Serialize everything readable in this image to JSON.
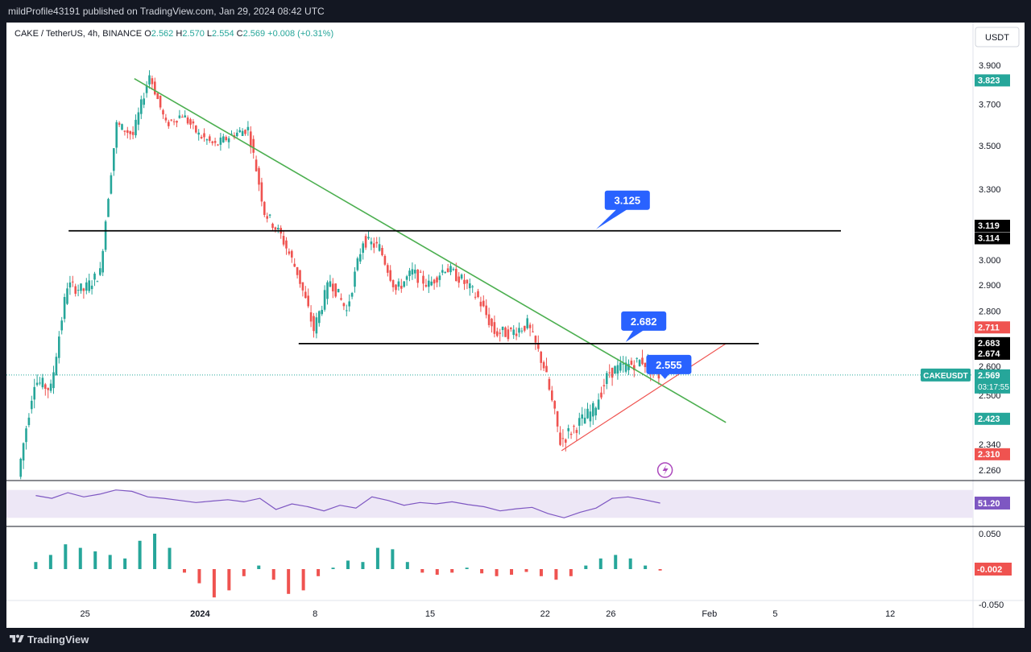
{
  "header": {
    "publisher_line": "mildProfile43191 published on TradingView.com, Jan 29, 2024 08:42 UTC"
  },
  "footer": {
    "brand": "TradingView"
  },
  "legend": {
    "symbol": "CAKE / TetherUS, 4h, BINANCE",
    "o_label": "O",
    "o": "2.562",
    "h_label": "H",
    "h": "2.570",
    "l_label": "L",
    "l": "2.554",
    "c_label": "C",
    "c": "2.569",
    "change": "+0.008 (+0.31%)"
  },
  "currency_button": "USDT",
  "symbol_tag": "CAKEUSDT",
  "countdown": "03:17:55",
  "colors": {
    "up": "#26a69a",
    "down": "#ef5350",
    "trend": "#4caf50",
    "support": "#ef5350",
    "callout": "#2962ff",
    "rsi": "#7e57c2"
  },
  "chart_data": [
    {
      "type": "candlestick",
      "title": "CAKE / TetherUS, 4h, BINANCE",
      "ylim": [
        2.22,
        4.02
      ],
      "y_scale": "log",
      "y_ticks": [
        "3.900",
        "3.700",
        "3.500",
        "3.300",
        "3.000",
        "2.900",
        "2.800",
        "2.600",
        "2.500",
        "2.340",
        "2.260"
      ],
      "x_ticks": [
        "25",
        "2024",
        "8",
        "15",
        "22",
        "26",
        "Feb",
        "5",
        "12"
      ],
      "price_labels": [
        {
          "value": "3.823",
          "color": "#26a69a"
        },
        {
          "value": "3.119",
          "color": "#000000"
        },
        {
          "value": "3.114",
          "color": "#000000"
        },
        {
          "value": "2.711",
          "color": "#ef5350"
        },
        {
          "value": "2.683",
          "color": "#000000"
        },
        {
          "value": "2.674",
          "color": "#000000"
        },
        {
          "value": "2.569",
          "color": "#26a69a"
        },
        {
          "value": "2.423",
          "color": "#26a69a"
        },
        {
          "value": "2.310",
          "color": "#ef5350"
        }
      ],
      "annotations": [
        {
          "label": "3.125",
          "kind": "horizontal line",
          "level": 3.12
        },
        {
          "label": "2.682",
          "kind": "horizontal line",
          "level": 2.68
        },
        {
          "label": "2.555",
          "kind": "trendline touch",
          "level": 2.555
        }
      ],
      "lines": {
        "descending_trendline": {
          "from": [
            "Dec 28",
            3.83
          ],
          "to": [
            "Feb 2",
            2.41
          ]
        },
        "ascending_support": {
          "from": [
            "Jan 23",
            2.32
          ],
          "to": [
            "Feb 2",
            2.68
          ]
        },
        "resistance": 3.12,
        "support": 2.68
      },
      "path_series": [
        {
          "date": "Dec 21",
          "close": 2.24
        },
        {
          "date": "Dec 22",
          "close": 2.55
        },
        {
          "date": "Dec 23",
          "close": 2.52
        },
        {
          "date": "Dec 24",
          "close": 2.9
        },
        {
          "date": "Dec 25",
          "close": 2.88
        },
        {
          "date": "Dec 26",
          "close": 2.95
        },
        {
          "date": "Dec 27",
          "close": 3.6
        },
        {
          "date": "Dec 28",
          "close": 3.55
        },
        {
          "date": "Dec 29",
          "close": 3.85
        },
        {
          "date": "Dec 30",
          "close": 3.6
        },
        {
          "date": "Dec 31",
          "close": 3.65
        },
        {
          "date": "Jan 1",
          "close": 3.55
        },
        {
          "date": "Jan 2",
          "close": 3.5
        },
        {
          "date": "Jan 3",
          "close": 3.55
        },
        {
          "date": "Jan 4",
          "close": 3.58
        },
        {
          "date": "Jan 5",
          "close": 3.2
        },
        {
          "date": "Jan 6",
          "close": 3.1
        },
        {
          "date": "Jan 7",
          "close": 2.95
        },
        {
          "date": "Jan 8",
          "close": 2.73
        },
        {
          "date": "Jan 9",
          "close": 2.92
        },
        {
          "date": "Jan 10",
          "close": 2.8
        },
        {
          "date": "Jan 11",
          "close": 3.08
        },
        {
          "date": "Jan 12",
          "close": 3.05
        },
        {
          "date": "Jan 13",
          "close": 2.88
        },
        {
          "date": "Jan 14",
          "close": 2.95
        },
        {
          "date": "Jan 15",
          "close": 2.9
        },
        {
          "date": "Jan 16",
          "close": 2.97
        },
        {
          "date": "Jan 17",
          "close": 2.92
        },
        {
          "date": "Jan 18",
          "close": 2.85
        },
        {
          "date": "Jan 19",
          "close": 2.72
        },
        {
          "date": "Jan 20",
          "close": 2.72
        },
        {
          "date": "Jan 21",
          "close": 2.75
        },
        {
          "date": "Jan 22",
          "close": 2.6
        },
        {
          "date": "Jan 23",
          "close": 2.35
        },
        {
          "date": "Jan 24",
          "close": 2.4
        },
        {
          "date": "Jan 25",
          "close": 2.45
        },
        {
          "date": "Jan 26",
          "close": 2.58
        },
        {
          "date": "Jan 27",
          "close": 2.6
        },
        {
          "date": "Jan 28",
          "close": 2.62
        },
        {
          "date": "Jan 29",
          "close": 2.569
        }
      ]
    },
    {
      "type": "line",
      "indicator": "RSI",
      "last_value": "51.20",
      "band": [
        30,
        70
      ],
      "values": [
        62,
        58,
        66,
        60,
        64,
        70,
        68,
        60,
        58,
        55,
        52,
        54,
        56,
        53,
        58,
        42,
        50,
        46,
        40,
        48,
        44,
        60,
        55,
        48,
        52,
        50,
        53,
        49,
        46,
        40,
        43,
        45,
        36,
        30,
        38,
        44,
        58,
        60,
        56,
        51.2
      ]
    },
    {
      "type": "bar",
      "indicator": "MACD histogram",
      "last_value": "-0.002",
      "y_ticks": [
        "0.050",
        "-0.050"
      ],
      "ylim": [
        -0.06,
        0.06
      ],
      "values": [
        0.01,
        0.02,
        0.035,
        0.03,
        0.025,
        0.02,
        0.015,
        0.04,
        0.05,
        0.03,
        -0.005,
        -0.02,
        -0.04,
        -0.03,
        -0.01,
        0.005,
        -0.015,
        -0.035,
        -0.03,
        -0.01,
        0.002,
        0.012,
        0.01,
        0.03,
        0.028,
        0.01,
        -0.005,
        -0.008,
        -0.005,
        0.002,
        -0.006,
        -0.01,
        -0.008,
        -0.004,
        -0.01,
        -0.015,
        -0.01,
        0.005,
        0.015,
        0.02,
        0.015,
        0.005,
        -0.002
      ]
    }
  ]
}
